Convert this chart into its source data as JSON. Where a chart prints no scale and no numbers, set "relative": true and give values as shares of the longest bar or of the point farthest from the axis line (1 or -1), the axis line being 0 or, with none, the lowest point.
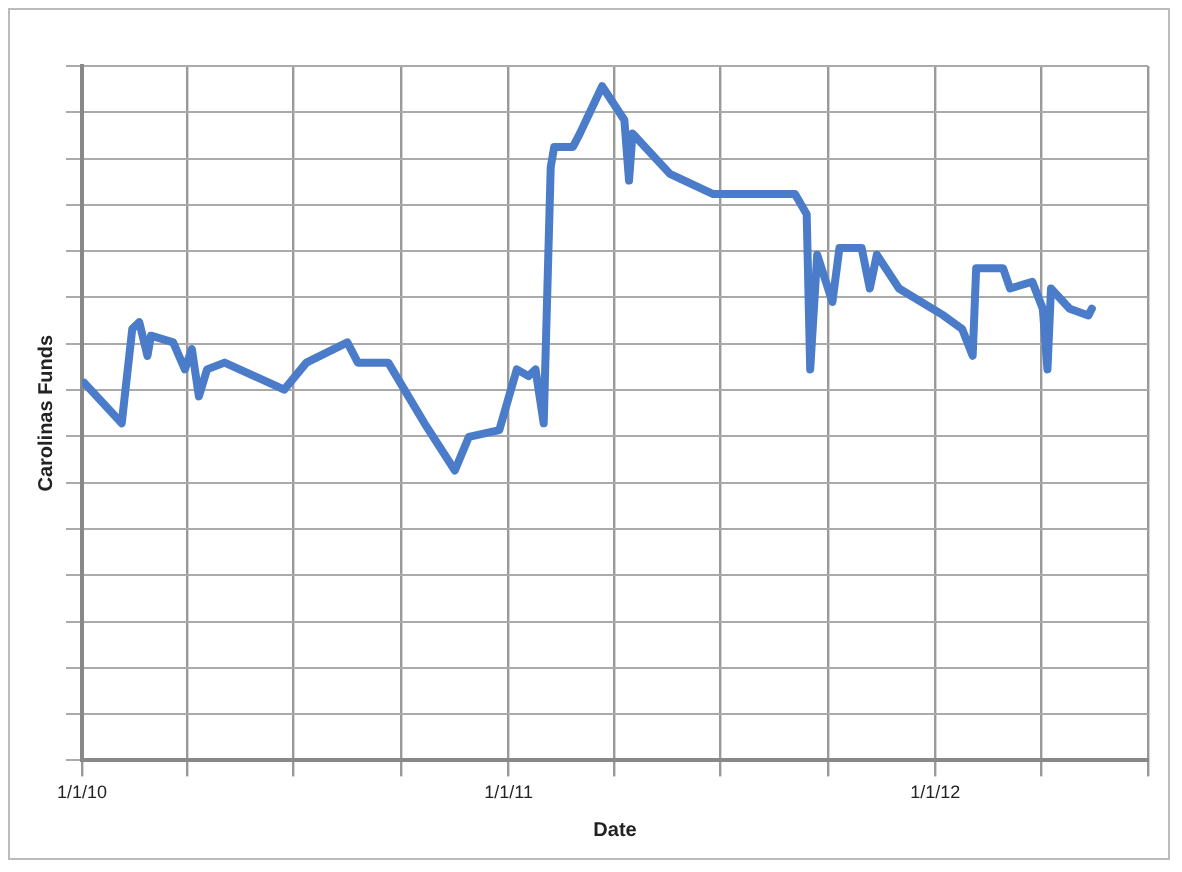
{
  "chart_data": {
    "type": "line",
    "xlabel": "Date",
    "ylabel": "Carolinas Funds",
    "relative": true,
    "grid": true,
    "legend": false,
    "marker": "none",
    "line_style": "solid",
    "xlim": [
      "2010-01-01",
      "2012-07-01"
    ],
    "xticks": [
      {
        "value": "2010-01-01",
        "label": "1/1/10"
      },
      {
        "value": "2010-04-01",
        "label": null
      },
      {
        "value": "2010-07-01",
        "label": null
      },
      {
        "value": "2010-10-01",
        "label": null
      },
      {
        "value": "2011-01-01",
        "label": "1/1/11"
      },
      {
        "value": "2011-04-01",
        "label": null
      },
      {
        "value": "2011-07-01",
        "label": null
      },
      {
        "value": "2011-10-01",
        "label": null
      },
      {
        "value": "2012-01-01",
        "label": "1/1/12"
      },
      {
        "value": "2012-04-01",
        "label": null
      },
      {
        "value": "2012-07-01",
        "label": null
      }
    ],
    "x": [
      "2010-01-03",
      "2010-02-04",
      "2010-02-13",
      "2010-02-19",
      "2010-02-26",
      "2010-03-01",
      "2010-03-20",
      "2010-03-30",
      "2010-04-05",
      "2010-04-11",
      "2010-04-18",
      "2010-05-03",
      "2010-06-23",
      "2010-07-12",
      "2010-08-16",
      "2010-08-25",
      "2010-09-20",
      "2010-10-21",
      "2010-11-16",
      "2010-11-28",
      "2010-12-24",
      "2011-01-08",
      "2011-01-18",
      "2011-01-24",
      "2011-01-31",
      "2011-02-06",
      "2011-02-09",
      "2011-02-25",
      "2011-03-03",
      "2011-03-22",
      "2011-04-10",
      "2011-04-14",
      "2011-04-17",
      "2011-05-19",
      "2011-06-25",
      "2011-09-03",
      "2011-09-13",
      "2011-09-16",
      "2011-09-22",
      "2011-10-05",
      "2011-10-11",
      "2011-10-30",
      "2011-11-06",
      "2011-11-12",
      "2011-12-01",
      "2012-01-08",
      "2012-01-24",
      "2012-02-02",
      "2012-02-05",
      "2012-02-28",
      "2012-03-05",
      "2012-03-24",
      "2012-04-02",
      "2012-04-06",
      "2012-04-09",
      "2012-04-25",
      "2012-05-11",
      "2012-05-14"
    ],
    "series": [
      {
        "color": "#4a7cc9",
        "values": [
          0.56,
          0.5,
          0.64,
          0.65,
          0.6,
          0.63,
          0.62,
          0.58,
          0.61,
          0.54,
          0.58,
          0.59,
          0.55,
          0.59,
          0.62,
          0.59,
          0.59,
          0.5,
          0.43,
          0.48,
          0.49,
          0.58,
          0.57,
          0.58,
          0.5,
          0.88,
          0.91,
          0.91,
          0.93,
          1,
          0.95,
          0.86,
          0.93,
          0.87,
          0.84,
          0.84,
          0.81,
          0.58,
          0.75,
          0.68,
          0.76,
          0.76,
          0.7,
          0.75,
          0.7,
          0.66,
          0.64,
          0.6,
          0.73,
          0.73,
          0.7,
          0.71,
          0.67,
          0.58,
          0.7,
          0.67,
          0.66,
          0.67
        ]
      }
    ]
  }
}
